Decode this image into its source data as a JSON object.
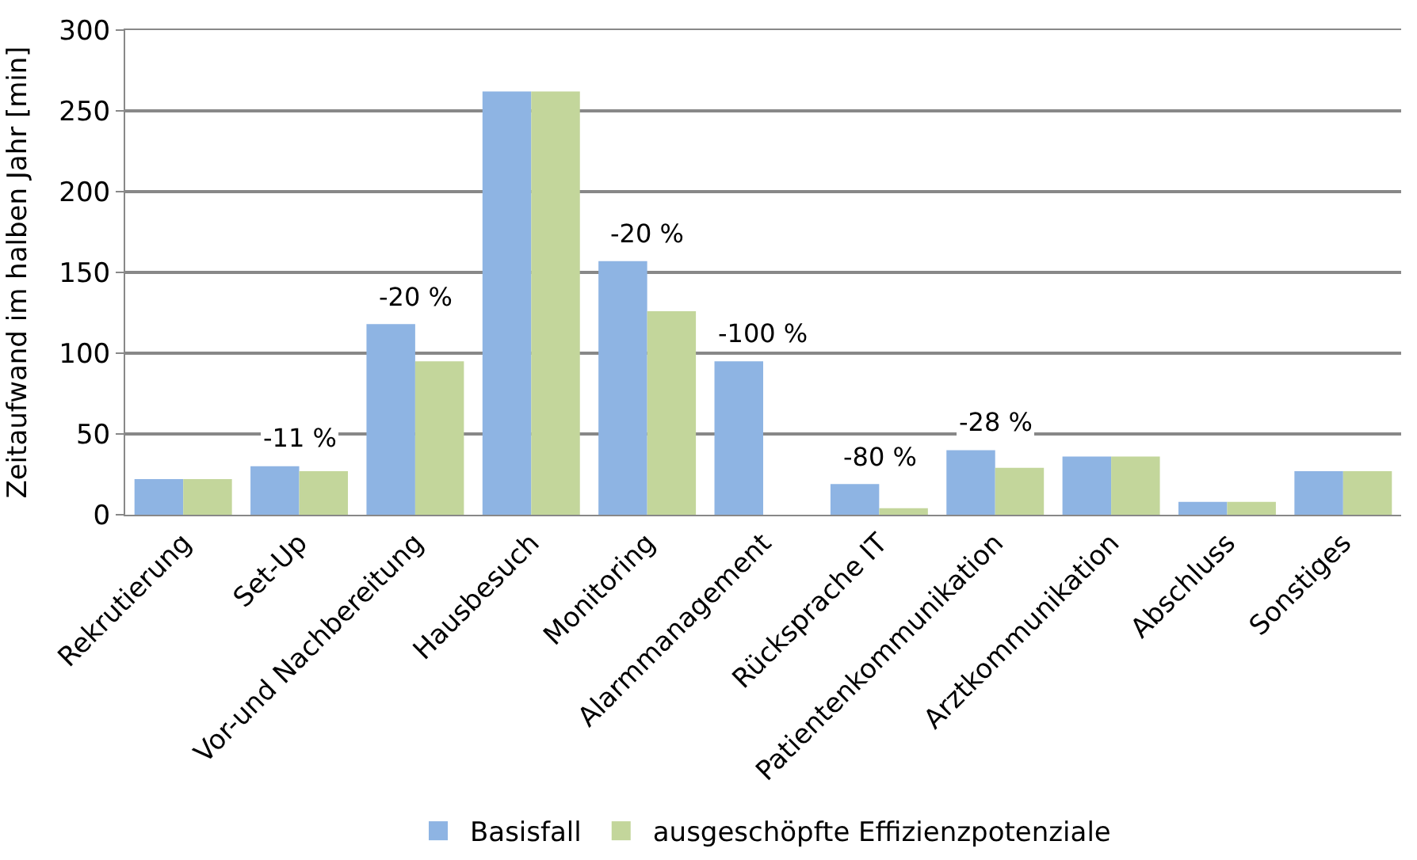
{
  "chart_data": {
    "type": "bar",
    "ylabel": "Zeitaufwand im halben Jahr [min]",
    "categories": [
      "Rekrutierung",
      "Set-Up",
      "Vor-und Nachbereitung",
      "Hausbesuch",
      "Monitoring",
      "Alarmmanagement",
      "Rücksprache IT",
      "Patientenkommunikation",
      "Arztkommunikation",
      "Abschluss",
      "Sonstiges"
    ],
    "series": [
      {
        "name": "Basisfall",
        "color": "#8eb4e3",
        "values": [
          22,
          30,
          118,
          262,
          157,
          95,
          19,
          40,
          36,
          8,
          27
        ]
      },
      {
        "name": "ausgeschöpfte Effizienzpotenziale",
        "color": "#c3d69b",
        "values": [
          22,
          27,
          95,
          262,
          126,
          0,
          4,
          29,
          36,
          8,
          27
        ]
      }
    ],
    "ylim": [
      0,
      300
    ],
    "yticks": [
      0,
      50,
      100,
      150,
      200,
      250,
      300
    ],
    "grid": "y",
    "legend": "bottom",
    "annotations": [
      {
        "text": "-11 %",
        "x": "Set-Up",
        "y": 30
      },
      {
        "text": "-20 %",
        "x": "Vor-und Nachbereitung",
        "y": 118
      },
      {
        "text": "-20 %",
        "x": "Monitoring",
        "y": 157
      },
      {
        "text": "-100 %",
        "x": "Alarmmanagement",
        "y": 95
      },
      {
        "text": "-80 %",
        "x": "Rücksprache IT",
        "y": 19
      },
      {
        "text": "-28 %",
        "x": "Patientenkommunikation",
        "y": 40
      }
    ]
  }
}
